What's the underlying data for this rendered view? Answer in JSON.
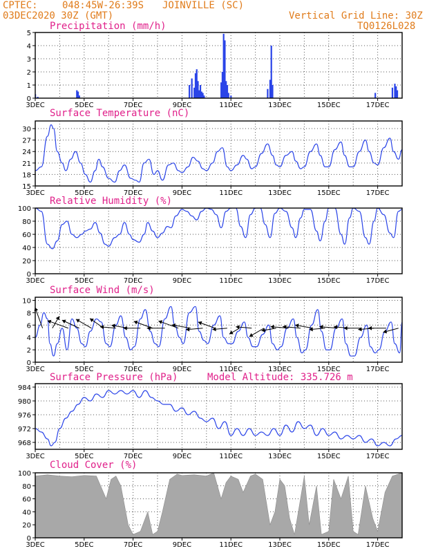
{
  "header": {
    "source": "CPTEC:",
    "coords": "048:45W-26:39S",
    "station": "JOINVILLE (SC)",
    "run": "03DEC2020 30Z (GMT)",
    "grid_line": "Vertical Grid Line: 30Z",
    "model_code": "TQ0126L028",
    "model_altitude": "Model Altitude: 335.726 m"
  },
  "colors": {
    "header": "#e07b1a",
    "title": "#e0208a",
    "line": "#2a44e8",
    "cloud": "#a8a8a8"
  },
  "x_axis": {
    "start_day": 3,
    "end_day": 18,
    "tick_labels": [
      "3DEC",
      "5DEC",
      "7DEC",
      "9DEC",
      "11DEC",
      "13DEC",
      "15DEC",
      "17DEC"
    ],
    "tick_days": [
      3,
      5,
      7,
      9,
      11,
      13,
      15,
      17
    ],
    "grid": "dotted vertical lines at 30Z each day"
  },
  "chart_data": [
    {
      "id": "precip",
      "type": "bar",
      "title": "Precipitation (mm/h)",
      "ylim": [
        0,
        5
      ],
      "yticks": [
        0,
        1,
        2,
        3,
        4,
        5
      ],
      "series": [
        {
          "values_day": [
            3.0,
            3.1,
            4.7,
            4.75,
            4.8,
            9.3,
            9.4,
            9.5,
            9.55,
            9.6,
            9.65,
            9.7,
            9.75,
            9.8,
            9.85,
            9.9,
            10.6,
            10.65,
            10.7,
            10.75,
            10.8,
            10.85,
            10.9,
            11.0,
            12.5,
            12.6,
            12.65,
            12.7,
            16.9,
            17.6,
            17.7,
            17.75,
            17.8
          ],
          "values": [
            0.3,
            0.1,
            0.6,
            0.5,
            0.2,
            1.0,
            1.5,
            0.8,
            1.9,
            2.2,
            1.3,
            0.6,
            1.0,
            0.5,
            0.4,
            0.2,
            1.2,
            2.0,
            4.9,
            4.4,
            1.3,
            1.0,
            0.4,
            0.2,
            0.7,
            1.4,
            4.0,
            1.0,
            0.4,
            0.8,
            1.1,
            0.9,
            0.6
          ]
        }
      ]
    },
    {
      "id": "temp",
      "type": "line",
      "title": "Surface Temperature (nC)",
      "ylim": [
        15,
        32
      ],
      "yticks": [
        15,
        18,
        21,
        24,
        27,
        30
      ],
      "series": [
        {
          "x": [
            3.0,
            3.25,
            3.5,
            3.65,
            3.75,
            3.9,
            4.1,
            4.25,
            4.45,
            4.65,
            4.85,
            5.05,
            5.25,
            5.45,
            5.6,
            5.75,
            6.0,
            6.25,
            6.45,
            6.65,
            6.9,
            7.1,
            7.25,
            7.45,
            7.65,
            7.85,
            8.0,
            8.2,
            8.45,
            8.65,
            8.85,
            9.0,
            9.25,
            9.45,
            9.65,
            9.85,
            10.0,
            10.25,
            10.45,
            10.65,
            10.85,
            11.0,
            11.25,
            11.5,
            11.65,
            11.85,
            12.0,
            12.25,
            12.5,
            12.7,
            12.85,
            13.0,
            13.25,
            13.5,
            13.65,
            13.85,
            14.0,
            14.25,
            14.5,
            14.65,
            14.85,
            15.0,
            15.25,
            15.5,
            15.65,
            15.85,
            16.0,
            16.25,
            16.5,
            16.65,
            16.85,
            17.0,
            17.25,
            17.5,
            17.65,
            17.85,
            18.0
          ],
          "y": [
            19,
            20,
            28,
            31,
            30,
            24,
            21,
            19,
            22,
            24,
            21,
            18,
            16,
            19,
            22,
            20,
            17,
            16,
            19,
            20.5,
            17,
            16.5,
            16,
            21,
            22,
            18,
            19,
            16.5,
            20.5,
            21,
            19,
            18.5,
            20,
            22.5,
            21.5,
            19.5,
            19,
            21,
            24,
            25,
            20,
            19,
            20.5,
            23,
            22,
            19.5,
            20,
            23.5,
            26,
            23,
            20.5,
            20,
            23,
            24,
            21.5,
            19.5,
            20,
            24,
            26,
            23,
            20,
            20,
            24.5,
            26.5,
            23,
            20,
            20,
            24,
            27,
            24,
            21,
            20.5,
            25,
            27.5,
            24,
            22,
            24.5
          ]
        }
      ]
    },
    {
      "id": "rh",
      "type": "line",
      "title": "Relative Humidity (%)",
      "ylim": [
        0,
        100
      ],
      "yticks": [
        0,
        20,
        40,
        60,
        80,
        100
      ],
      "series": [
        {
          "x": [
            3.0,
            3.25,
            3.5,
            3.7,
            3.9,
            4.1,
            4.3,
            4.5,
            4.7,
            4.9,
            5.05,
            5.25,
            5.45,
            5.65,
            5.85,
            6.0,
            6.25,
            6.45,
            6.65,
            6.85,
            7.0,
            7.25,
            7.45,
            7.6,
            7.8,
            8.0,
            8.2,
            8.4,
            8.55,
            8.75,
            9.0,
            9.2,
            9.4,
            9.6,
            9.8,
            10.0,
            10.2,
            10.4,
            10.6,
            10.8,
            11.0,
            11.2,
            11.4,
            11.6,
            11.8,
            12.0,
            12.2,
            12.4,
            12.6,
            12.8,
            13.0,
            13.25,
            13.5,
            13.65,
            13.85,
            14.0,
            14.25,
            14.5,
            14.65,
            14.85,
            15.0,
            15.25,
            15.5,
            15.65,
            15.85,
            16.0,
            16.25,
            16.5,
            16.65,
            16.85,
            17.0,
            17.25,
            17.5,
            17.65,
            17.85,
            18.0
          ],
          "y": [
            100,
            95,
            45,
            38,
            50,
            75,
            80,
            60,
            55,
            60,
            65,
            68,
            78,
            62,
            45,
            42,
            55,
            60,
            78,
            60,
            52,
            48,
            60,
            78,
            65,
            55,
            62,
            72,
            70,
            88,
            98,
            95,
            88,
            82,
            95,
            100,
            98,
            90,
            70,
            95,
            100,
            100,
            72,
            55,
            90,
            100,
            100,
            75,
            55,
            92,
            100,
            95,
            70,
            55,
            85,
            98,
            98,
            65,
            50,
            80,
            100,
            100,
            60,
            45,
            85,
            100,
            95,
            55,
            45,
            80,
            100,
            90,
            62,
            55,
            95,
            98
          ]
        }
      ]
    },
    {
      "id": "wind",
      "type": "line",
      "title": "Surface Wind (m/s)",
      "ylim": [
        0,
        10.5
      ],
      "yticks": [
        0,
        2,
        4,
        6,
        8,
        10
      ],
      "series": [
        {
          "x": [
            3.0,
            3.2,
            3.35,
            3.5,
            3.6,
            3.75,
            3.9,
            4.1,
            4.3,
            4.5,
            4.7,
            4.9,
            5.05,
            5.25,
            5.5,
            5.7,
            5.9,
            6.05,
            6.3,
            6.5,
            6.7,
            6.9,
            7.05,
            7.3,
            7.5,
            7.7,
            7.9,
            8.05,
            8.3,
            8.55,
            8.7,
            8.9,
            9.05,
            9.3,
            9.55,
            9.7,
            9.9,
            10.05,
            10.3,
            10.55,
            10.7,
            10.9,
            11.05,
            11.3,
            11.55,
            11.7,
            11.9,
            12.05,
            12.3,
            12.55,
            12.7,
            12.9,
            13.05,
            13.3,
            13.55,
            13.7,
            13.9,
            14.05,
            14.3,
            14.55,
            14.7,
            14.9,
            15.05,
            15.3,
            15.55,
            15.7,
            15.9,
            16.05,
            16.3,
            16.55,
            16.7,
            16.9,
            17.05,
            17.3,
            17.55,
            17.7,
            17.9,
            18.0
          ],
          "y": [
            4,
            6,
            8,
            7,
            3,
            1,
            3,
            5.5,
            2,
            7,
            5.5,
            3,
            2.5,
            5,
            7,
            6.5,
            3,
            2.5,
            6,
            7.5,
            4,
            2,
            2.5,
            7,
            8.5,
            5,
            3,
            2.5,
            7,
            9,
            6,
            4,
            3,
            8,
            9,
            5,
            3.5,
            3,
            6,
            7.5,
            4,
            3,
            3,
            5,
            6.5,
            4,
            2.5,
            2.5,
            4.5,
            6,
            3,
            2,
            2.5,
            5.5,
            7,
            4,
            1.5,
            2,
            6,
            8.5,
            5,
            2,
            2,
            5.5,
            7,
            3,
            1,
            1,
            4,
            6,
            2.5,
            1.5,
            2,
            5,
            6.5,
            3,
            1.5,
            6.5
          ]
        }
      ],
      "wind_arrows_day": [
        3.3,
        3.7,
        4.35,
        4.8,
        5.3,
        5.8,
        6.3,
        6.8,
        7.3,
        7.8,
        8.3,
        8.85,
        9.35,
        9.85,
        10.35,
        10.85,
        11.35,
        11.85,
        12.35,
        12.85,
        13.35,
        13.85,
        14.35,
        14.85,
        15.35,
        15.85,
        16.35,
        16.85,
        17.35,
        17.85
      ],
      "wind_arrows_speed": [
        8,
        4,
        8,
        6.5,
        6,
        5.5,
        5,
        5.5,
        5.5,
        7,
        6,
        7.5,
        6.5,
        5.5,
        6,
        4.5,
        3,
        5,
        5.5,
        4.5,
        6,
        6,
        6,
        5,
        6,
        5,
        6,
        5,
        6,
        5
      ],
      "wind_arrows_dir_deg": [
        160,
        210,
        110,
        115,
        120,
        125,
        95,
        100,
        90,
        110,
        90,
        110,
        100,
        85,
        110,
        85,
        60,
        95,
        60,
        80,
        95,
        95,
        100,
        85,
        95,
        95,
        90,
        85,
        90,
        75
      ]
    },
    {
      "id": "pres",
      "type": "line",
      "title": "Surface Pressure (hPa)",
      "ylim": [
        966,
        985
      ],
      "yticks": [
        968,
        972,
        976,
        980,
        984
      ],
      "series": [
        {
          "x": [
            3.0,
            3.25,
            3.5,
            3.65,
            3.8,
            4.0,
            4.25,
            4.5,
            4.75,
            5.0,
            5.25,
            5.5,
            5.75,
            6.0,
            6.25,
            6.5,
            6.75,
            7.0,
            7.25,
            7.5,
            7.75,
            8.0,
            8.25,
            8.5,
            8.75,
            9.0,
            9.25,
            9.5,
            9.75,
            10.0,
            10.25,
            10.5,
            10.75,
            11.0,
            11.25,
            11.5,
            11.75,
            12.0,
            12.25,
            12.5,
            12.75,
            13.0,
            13.25,
            13.5,
            13.75,
            14.0,
            14.25,
            14.5,
            14.75,
            15.0,
            15.25,
            15.5,
            15.75,
            16.0,
            16.25,
            16.5,
            16.75,
            17.0,
            17.25,
            17.5,
            17.75,
            18.0
          ],
          "y": [
            972,
            971,
            969,
            967,
            968,
            972,
            975,
            977,
            979,
            981,
            980,
            982,
            981,
            983,
            982,
            983,
            982,
            983,
            981,
            983,
            981,
            980,
            979,
            979,
            977,
            978,
            976,
            977,
            975,
            974,
            975,
            972,
            974,
            970,
            972,
            970,
            972,
            970,
            971,
            970,
            972,
            970,
            973,
            971,
            974,
            972,
            973,
            970,
            972,
            970,
            971,
            969,
            970,
            969,
            970,
            968,
            969,
            967,
            968,
            967,
            969,
            970
          ]
        }
      ]
    },
    {
      "id": "cloud",
      "type": "area",
      "title": "Cloud Cover (%)",
      "ylim": [
        0,
        100
      ],
      "yticks": [
        0,
        20,
        40,
        60,
        80,
        100
      ],
      "series": [
        {
          "x": [
            3.0,
            3.5,
            4.0,
            4.5,
            5.0,
            5.5,
            5.9,
            6.1,
            6.3,
            6.5,
            6.8,
            7.0,
            7.3,
            7.6,
            7.8,
            8.0,
            8.2,
            8.5,
            8.8,
            9.0,
            9.5,
            10.0,
            10.3,
            10.6,
            10.8,
            11.0,
            11.3,
            11.5,
            11.8,
            12.0,
            12.3,
            12.6,
            12.8,
            13.0,
            13.2,
            13.4,
            13.6,
            13.8,
            14.0,
            14.2,
            14.5,
            14.7,
            15.0,
            15.2,
            15.5,
            15.8,
            16.0,
            16.2,
            16.5,
            16.8,
            17.0,
            17.3,
            17.6,
            18.0
          ],
          "y": [
            95,
            97,
            95,
            94,
            96,
            95,
            60,
            90,
            95,
            80,
            20,
            5,
            10,
            40,
            5,
            10,
            40,
            90,
            98,
            96,
            97,
            95,
            100,
            60,
            85,
            95,
            90,
            70,
            95,
            98,
            90,
            20,
            40,
            90,
            80,
            30,
            5,
            50,
            95,
            20,
            80,
            5,
            10,
            90,
            60,
            95,
            10,
            5,
            80,
            30,
            10,
            70,
            95,
            100
          ]
        }
      ]
    }
  ]
}
